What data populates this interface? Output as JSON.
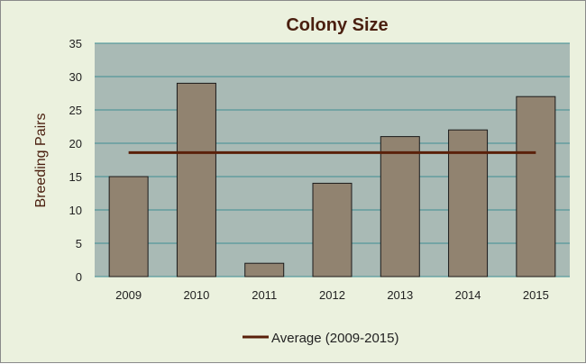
{
  "chart_data": {
    "type": "bar",
    "title": "Colony Size",
    "xlabel": "",
    "ylabel": "Breeding Pairs",
    "categories": [
      "2009",
      "2010",
      "2011",
      "2012",
      "2013",
      "2014",
      "2015"
    ],
    "values": [
      15,
      29,
      2,
      14,
      21,
      22,
      27
    ],
    "ylim": [
      0,
      35
    ],
    "yticks": [
      0,
      5,
      10,
      15,
      20,
      25,
      30,
      35
    ],
    "grid": true,
    "average_line": {
      "name": "Average (2009-2015)",
      "value": 18.6
    },
    "legend_position": "bottom",
    "colors": {
      "chart_background": "#ebf1de",
      "plot_background": "#a9bab5",
      "bar_fill": "#918370",
      "bar_stroke": "#1a1a1a",
      "average_line": "#5a200a",
      "gridline": "#3f8f94",
      "title": "#4a1f0f"
    }
  }
}
